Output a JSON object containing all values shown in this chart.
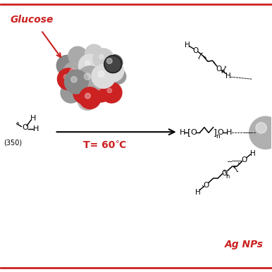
{
  "bg_color": "#ffffff",
  "border_color": "#cc2222",
  "border_lw": 2,
  "title_text": "Ag NPs",
  "title_color": "#cc2222",
  "title_fontsize": 10,
  "glucose_label": "Glucose",
  "glucose_color": "#cc2222",
  "glucose_fontsize": 10,
  "temp_text": "T= 60",
  "temp_suffix": "C",
  "temp_color": "#cc2222",
  "temp_fontsize": 10,
  "left_mol_label": "(350)",
  "figsize": [
    3.86,
    3.86
  ],
  "dpi": 100
}
